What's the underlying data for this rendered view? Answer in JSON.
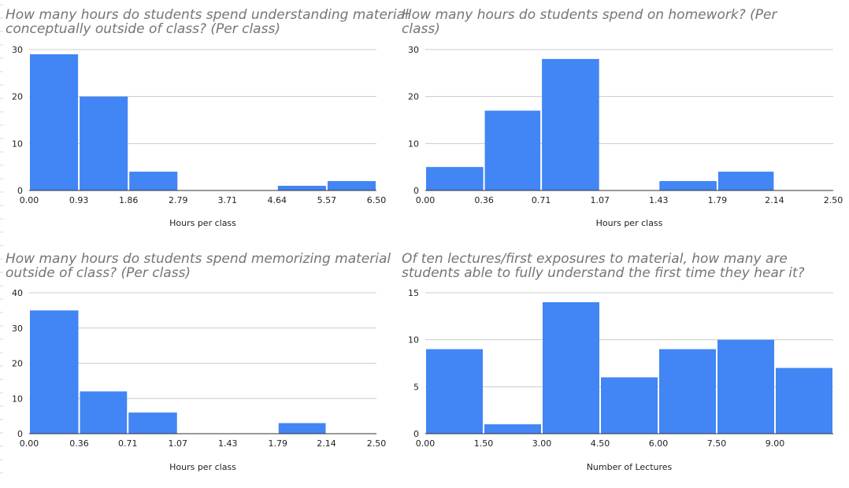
{
  "chart_data": [
    {
      "type": "bar",
      "title": "How many hours do students spend understanding material conceptually outside of class? (Per class)",
      "xlabel": "Hours per class",
      "ylabel": "",
      "x_ticks": [
        "0.00",
        "0.93",
        "1.86",
        "2.79",
        "3.71",
        "4.64",
        "5.57",
        "6.50"
      ],
      "y_ticks": [
        "0",
        "10",
        "20",
        "30"
      ],
      "xlim": [
        0,
        6.5
      ],
      "ylim": [
        0,
        30
      ],
      "bins": [
        {
          "start": 0.0,
          "end": 0.93,
          "value": 29
        },
        {
          "start": 0.93,
          "end": 1.86,
          "value": 20
        },
        {
          "start": 1.86,
          "end": 2.79,
          "value": 4
        },
        {
          "start": 2.79,
          "end": 3.71,
          "value": 0
        },
        {
          "start": 3.71,
          "end": 4.64,
          "value": 0
        },
        {
          "start": 4.64,
          "end": 5.57,
          "value": 1
        },
        {
          "start": 5.57,
          "end": 6.5,
          "value": 2
        }
      ],
      "grid": true,
      "bar_color": "#4285f4"
    },
    {
      "type": "bar",
      "title": "How many hours do students spend on homework? (Per class)",
      "xlabel": "Hours per class",
      "ylabel": "",
      "x_ticks": [
        "0.00",
        "0.36",
        "0.71",
        "1.07",
        "1.43",
        "1.79",
        "2.14",
        "2.50"
      ],
      "y_ticks": [
        "0",
        "10",
        "20",
        "30"
      ],
      "xlim": [
        0,
        2.5
      ],
      "ylim": [
        0,
        30
      ],
      "bins": [
        {
          "start": 0.0,
          "end": 0.36,
          "value": 5
        },
        {
          "start": 0.36,
          "end": 0.71,
          "value": 17
        },
        {
          "start": 0.71,
          "end": 1.07,
          "value": 28
        },
        {
          "start": 1.07,
          "end": 1.43,
          "value": 0
        },
        {
          "start": 1.43,
          "end": 1.79,
          "value": 2
        },
        {
          "start": 1.79,
          "end": 2.14,
          "value": 4
        },
        {
          "start": 2.14,
          "end": 2.5,
          "value": 0
        }
      ],
      "grid": true,
      "bar_color": "#4285f4"
    },
    {
      "type": "bar",
      "title": "How many hours do students spend memorizing material outside of class? (Per class)",
      "xlabel": "Hours per class",
      "ylabel": "",
      "x_ticks": [
        "0.00",
        "0.36",
        "0.71",
        "1.07",
        "1.43",
        "1.79",
        "2.14",
        "2.50"
      ],
      "y_ticks": [
        "0",
        "10",
        "20",
        "30",
        "40"
      ],
      "xlim": [
        0,
        2.5
      ],
      "ylim": [
        0,
        40
      ],
      "bins": [
        {
          "start": 0.0,
          "end": 0.36,
          "value": 35
        },
        {
          "start": 0.36,
          "end": 0.71,
          "value": 12
        },
        {
          "start": 0.71,
          "end": 1.07,
          "value": 6
        },
        {
          "start": 1.07,
          "end": 1.43,
          "value": 0
        },
        {
          "start": 1.43,
          "end": 1.79,
          "value": 0
        },
        {
          "start": 1.79,
          "end": 2.14,
          "value": 3
        },
        {
          "start": 2.14,
          "end": 2.5,
          "value": 0
        }
      ],
      "grid": true,
      "bar_color": "#4285f4"
    },
    {
      "type": "bar",
      "title": "Of ten lectures/first exposures to material, how many are students able to fully understand the first time they hear it?",
      "xlabel": "Number of Lectures",
      "ylabel": "",
      "x_ticks": [
        "0.00",
        "1.50",
        "3.00",
        "4.50",
        "6.00",
        "7.50",
        "9.00"
      ],
      "y_ticks": [
        "0",
        "5",
        "10",
        "15"
      ],
      "xlim": [
        0,
        10.5
      ],
      "ylim": [
        0,
        15
      ],
      "bins": [
        {
          "start": 0.0,
          "end": 1.5,
          "value": 9
        },
        {
          "start": 1.5,
          "end": 3.0,
          "value": 1
        },
        {
          "start": 3.0,
          "end": 4.5,
          "value": 14
        },
        {
          "start": 4.5,
          "end": 6.0,
          "value": 6
        },
        {
          "start": 6.0,
          "end": 7.5,
          "value": 9
        },
        {
          "start": 7.5,
          "end": 9.0,
          "value": 10
        },
        {
          "start": 9.0,
          "end": 10.5,
          "value": 7
        }
      ],
      "grid": true,
      "bar_color": "#4285f4"
    }
  ]
}
